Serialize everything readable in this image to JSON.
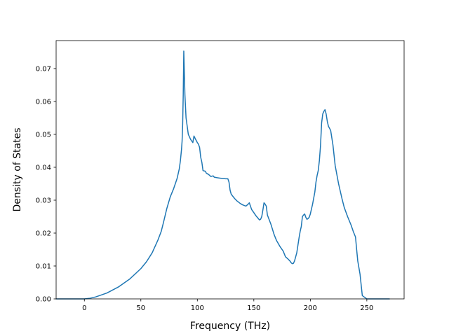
{
  "chart_data": {
    "type": "line",
    "title": "",
    "xlabel": "Frequency (THz)",
    "ylabel": "Density of States",
    "xlim": [
      -25,
      283
    ],
    "ylim": [
      0,
      0.0785
    ],
    "xticks": [
      0,
      50,
      100,
      150,
      200,
      250
    ],
    "xtick_labels": [
      "0",
      "50",
      "100",
      "150",
      "200",
      "250"
    ],
    "yticks": [
      0,
      0.01,
      0.02,
      0.03,
      0.04,
      0.05,
      0.06,
      0.07
    ],
    "ytick_labels": [
      "0.00",
      "0.01",
      "0.02",
      "0.03",
      "0.04",
      "0.05",
      "0.06",
      "0.07"
    ],
    "grid": false,
    "line_color": "#1f77b4",
    "series": [
      {
        "x": [
          -25,
          -10,
          0,
          5,
          10,
          20,
          30,
          40,
          50,
          55,
          60,
          65,
          68,
          70,
          73,
          76,
          79,
          82,
          84,
          85,
          86,
          86.5,
          87,
          87.5,
          88,
          89,
          90,
          92,
          94,
          95,
          96,
          97,
          98,
          100,
          101,
          102,
          103,
          104,
          105,
          107,
          108,
          110,
          112,
          114,
          115,
          118,
          120,
          125,
          127,
          128,
          129,
          130,
          133,
          135,
          138,
          140,
          143,
          145,
          146,
          147,
          148,
          150,
          152,
          154,
          155,
          156,
          157,
          158,
          159,
          160,
          161,
          162,
          165,
          168,
          170,
          173,
          176,
          178,
          180,
          182,
          183,
          184,
          185,
          186,
          188,
          190,
          191,
          192,
          193,
          194,
          195,
          196,
          197,
          198,
          199,
          200,
          202,
          204,
          205,
          206,
          207,
          208,
          209,
          210,
          211,
          212,
          213,
          214,
          215,
          216,
          218,
          220,
          222,
          225,
          228,
          230,
          233,
          236,
          238,
          240,
          241,
          242,
          244,
          246,
          250,
          260,
          270
        ],
        "y": [
          0,
          0,
          0,
          0.0002,
          0.0006,
          0.0018,
          0.0036,
          0.006,
          0.0092,
          0.0113,
          0.014,
          0.0178,
          0.0205,
          0.0232,
          0.0275,
          0.031,
          0.0335,
          0.0365,
          0.0395,
          0.042,
          0.0455,
          0.048,
          0.053,
          0.062,
          0.0753,
          0.062,
          0.055,
          0.05,
          0.0485,
          0.048,
          0.0475,
          0.0495,
          0.0488,
          0.0475,
          0.047,
          0.046,
          0.043,
          0.0415,
          0.039,
          0.0388,
          0.0382,
          0.0378,
          0.0372,
          0.0374,
          0.037,
          0.0368,
          0.0367,
          0.0365,
          0.0365,
          0.0355,
          0.033,
          0.0318,
          0.0305,
          0.0298,
          0.029,
          0.0286,
          0.0282,
          0.0288,
          0.0292,
          0.0282,
          0.0272,
          0.0262,
          0.0252,
          0.0244,
          0.024,
          0.0242,
          0.025,
          0.027,
          0.0292,
          0.0288,
          0.0282,
          0.0255,
          0.0228,
          0.0195,
          0.0178,
          0.016,
          0.0145,
          0.0128,
          0.0122,
          0.0115,
          0.011,
          0.0107,
          0.0108,
          0.0115,
          0.014,
          0.0185,
          0.0205,
          0.022,
          0.025,
          0.0255,
          0.0258,
          0.0248,
          0.0242,
          0.0244,
          0.0248,
          0.0258,
          0.0288,
          0.0325,
          0.0355,
          0.0375,
          0.039,
          0.042,
          0.0465,
          0.0535,
          0.0562,
          0.057,
          0.0575,
          0.0562,
          0.054,
          0.0525,
          0.0512,
          0.0468,
          0.0405,
          0.035,
          0.0305,
          0.0278,
          0.025,
          0.0225,
          0.0205,
          0.0188,
          0.015,
          0.0115,
          0.0075,
          0.001,
          0,
          0,
          0
        ]
      }
    ]
  }
}
